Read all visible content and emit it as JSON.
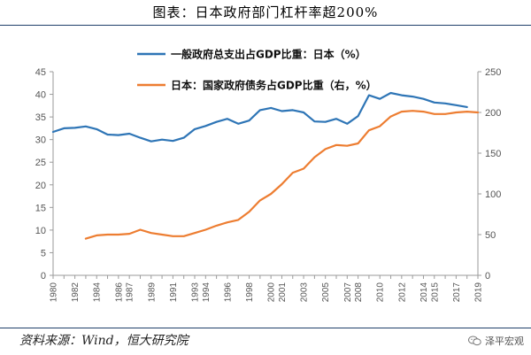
{
  "header": {
    "title": "图表：日本政府部门杠杆率超200%"
  },
  "footer": {
    "source": "资料来源：Wind，恒大研究院",
    "watermark": "泽平宏观",
    "watermark_icon": "wechat-icon"
  },
  "chart_data": {
    "type": "line",
    "title": "",
    "xlabel": "",
    "ylabel": "",
    "categories": [
      "1980",
      "1981",
      "1982",
      "1983",
      "1984",
      "1985",
      "1986",
      "1987",
      "1988",
      "1989",
      "1990",
      "1991",
      "1992",
      "1993",
      "1994",
      "1995",
      "1996",
      "1997",
      "1998",
      "1999",
      "2000",
      "2001",
      "2002",
      "2003",
      "2004",
      "2005",
      "2006",
      "2007",
      "2008",
      "2009",
      "2010",
      "2011",
      "2012",
      "2013",
      "2014",
      "2015",
      "2016",
      "2017",
      "2018",
      "2019"
    ],
    "x_tick_labels": [
      "1980",
      "1982",
      "1984",
      "1986",
      "1987",
      "1989",
      "1991",
      "1993",
      "1994",
      "1996",
      "1998",
      "2000",
      "2001",
      "2003",
      "2005",
      "2007",
      "2008",
      "2010",
      "2012",
      "2014",
      "2015",
      "2017",
      "2019"
    ],
    "y_left": {
      "range": [
        0,
        45
      ],
      "ticks": [
        "0",
        "5",
        "10",
        "15",
        "20",
        "25",
        "30",
        "35",
        "40",
        "45"
      ]
    },
    "y_right": {
      "range": [
        0,
        250
      ],
      "ticks": [
        "0",
        "50",
        "100",
        "150",
        "200",
        "250"
      ]
    },
    "grid": false,
    "legend_position": "top-center",
    "series": [
      {
        "name": "一般政府总支出占GDP比重：日本（%）",
        "axis": "left",
        "color": "#2e75b6",
        "values": [
          31.7,
          32.5,
          32.6,
          32.9,
          32.3,
          31.1,
          31.0,
          31.3,
          30.4,
          29.6,
          30.0,
          29.7,
          30.4,
          32.3,
          33.0,
          33.9,
          34.6,
          33.5,
          34.2,
          36.5,
          37.0,
          36.3,
          36.5,
          36.0,
          34.0,
          33.9,
          34.6,
          33.5,
          35.2,
          39.8,
          39.0,
          40.3,
          39.8,
          39.5,
          39.0,
          38.2,
          38.0,
          37.6,
          37.2,
          null
        ]
      },
      {
        "name": "日本：国家政府债务占GDP比重（右，%）",
        "axis": "right",
        "color": "#ed7d31",
        "values": [
          null,
          null,
          null,
          45,
          49,
          50,
          50,
          51,
          56,
          52,
          50,
          48,
          48,
          52,
          56,
          61,
          65,
          68,
          78,
          92,
          100,
          112,
          126,
          131,
          145,
          155,
          160,
          159,
          162,
          178,
          183,
          195,
          201,
          202,
          201,
          198,
          198,
          200,
          201,
          200
        ]
      }
    ]
  }
}
